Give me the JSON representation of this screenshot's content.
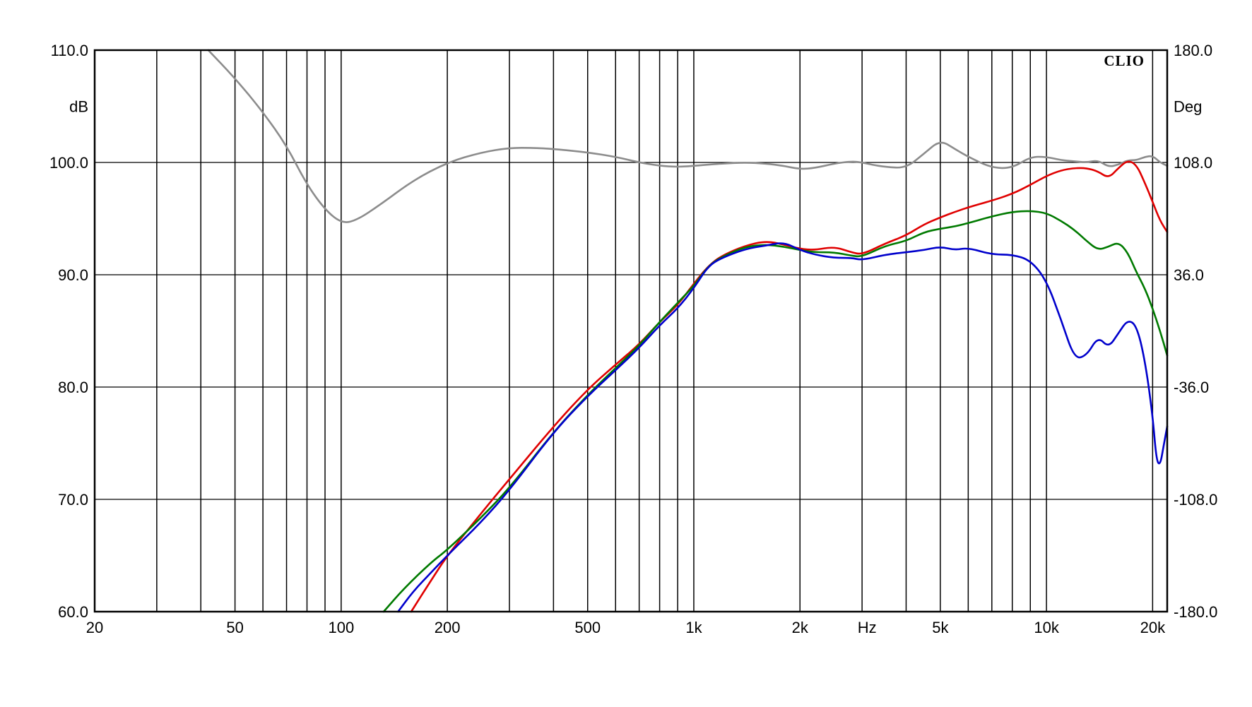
{
  "chart_data": {
    "type": "line",
    "title": "",
    "brand": "CLIO",
    "xlabel": "Hz",
    "ylabel_left": "dB",
    "ylabel_right": "Deg",
    "x_scale": "log",
    "xlim": [
      20,
      22000
    ],
    "ylim_left": [
      60,
      110
    ],
    "ylim_right": [
      -180,
      180
    ],
    "grid": true,
    "legend": "none",
    "x_tick_labels": [
      {
        "label": "20",
        "value": 20
      },
      {
        "label": "50",
        "value": 50
      },
      {
        "label": "100",
        "value": 100
      },
      {
        "label": "200",
        "value": 200
      },
      {
        "label": "500",
        "value": 500
      },
      {
        "label": "1k",
        "value": 1000
      },
      {
        "label": "2k",
        "value": 2000
      },
      {
        "label": "Hz",
        "value": 3100
      },
      {
        "label": "5k",
        "value": 5000
      },
      {
        "label": "10k",
        "value": 10000
      },
      {
        "label": "20k",
        "value": 20000
      }
    ],
    "x_grid_lines": [
      30,
      40,
      50,
      60,
      70,
      80,
      90,
      100,
      200,
      300,
      400,
      500,
      600,
      700,
      800,
      900,
      1000,
      2000,
      3000,
      4000,
      5000,
      6000,
      7000,
      8000,
      9000,
      10000,
      20000
    ],
    "y_ticks_left": [
      "110.0",
      "100.0",
      "90.0",
      "80.0",
      "70.0",
      "60.0"
    ],
    "y_tick_values_left": [
      110,
      100,
      90,
      80,
      70,
      60
    ],
    "y_ticks_right": [
      "180.0",
      "108.0",
      "36.0",
      "-36.0",
      "-108.0",
      "-180.0"
    ],
    "series": [
      {
        "color": "#8c8c8c",
        "x": [
          42,
          50,
          60,
          70,
          80,
          90,
          100,
          110,
          130,
          160,
          200,
          250,
          300,
          350,
          400,
          500,
          600,
          700,
          800,
          900,
          1000,
          1200,
          1400,
          1600,
          1800,
          2000,
          2200,
          2500,
          2800,
          3000,
          3200,
          3500,
          4000,
          4500,
          5000,
          5500,
          6000,
          7000,
          8000,
          9000,
          10000,
          11000,
          12000,
          13000,
          14000,
          15000,
          16000,
          17000,
          18000,
          19000,
          20000,
          21000,
          22000
        ],
        "values": [
          110,
          107.5,
          104.5,
          101.5,
          98.0,
          95.8,
          94.6,
          94.8,
          96.3,
          98.4,
          100.0,
          100.9,
          101.3,
          101.3,
          101.2,
          100.9,
          100.5,
          100.0,
          99.7,
          99.6,
          99.7,
          99.9,
          100.0,
          99.9,
          99.7,
          99.4,
          99.5,
          99.9,
          100.1,
          100.0,
          99.8,
          99.6,
          99.5,
          100.8,
          102.0,
          101.2,
          100.5,
          99.5,
          99.5,
          100.5,
          100.5,
          100.2,
          100.1,
          100.0,
          100.2,
          99.6,
          99.8,
          100.2,
          100.2,
          100.5,
          100.6,
          100.0,
          99.7
        ]
      },
      {
        "color": "#e00000",
        "x": [
          158,
          180,
          200,
          250,
          300,
          400,
          500,
          600,
          700,
          800,
          900,
          1000,
          1100,
          1200,
          1400,
          1600,
          1800,
          2000,
          2200,
          2500,
          2800,
          3000,
          3500,
          4000,
          4500,
          5000,
          5500,
          6000,
          7000,
          8000,
          9000,
          10000,
          11000,
          12000,
          13000,
          14000,
          15000,
          16000,
          17000,
          18000,
          19000,
          20000,
          21000,
          22000
        ],
        "values": [
          60,
          62.8,
          65.0,
          68.8,
          71.8,
          76.5,
          79.8,
          82.0,
          83.8,
          85.8,
          87.3,
          89.2,
          90.8,
          91.7,
          92.6,
          93.0,
          92.7,
          92.3,
          92.2,
          92.5,
          92.0,
          91.8,
          92.8,
          93.5,
          94.5,
          95.1,
          95.6,
          96.0,
          96.6,
          97.2,
          98.0,
          98.8,
          99.3,
          99.5,
          99.5,
          99.2,
          98.6,
          99.5,
          100.2,
          99.8,
          98.2,
          96.5,
          94.8,
          93.8
        ]
      },
      {
        "color": "#007a00",
        "x": [
          132,
          150,
          180,
          200,
          250,
          300,
          400,
          500,
          600,
          700,
          800,
          900,
          1000,
          1100,
          1200,
          1400,
          1600,
          1800,
          2000,
          2200,
          2500,
          2800,
          3000,
          3500,
          4000,
          4500,
          5000,
          5500,
          6000,
          7000,
          8000,
          9000,
          10000,
          11000,
          12000,
          13000,
          14000,
          15000,
          16000,
          17000,
          18000,
          19000,
          20000,
          21000,
          22000
        ],
        "values": [
          60,
          62.0,
          64.4,
          65.5,
          68.4,
          71.0,
          76.0,
          79.3,
          81.7,
          83.7,
          85.8,
          87.5,
          89.0,
          90.8,
          91.6,
          92.5,
          92.7,
          92.5,
          92.2,
          92.0,
          92.0,
          91.7,
          91.6,
          92.6,
          93.0,
          93.8,
          94.1,
          94.3,
          94.6,
          95.2,
          95.6,
          95.7,
          95.5,
          94.8,
          94.0,
          93.0,
          92.2,
          92.5,
          92.9,
          92.0,
          90.2,
          88.8,
          87.0,
          85.0,
          82.8
        ]
      },
      {
        "color": "#0000cc",
        "x": [
          145,
          160,
          180,
          200,
          250,
          300,
          400,
          500,
          600,
          700,
          800,
          900,
          1000,
          1100,
          1200,
          1400,
          1600,
          1800,
          2000,
          2200,
          2500,
          2800,
          3000,
          3500,
          4000,
          4500,
          5000,
          5500,
          6000,
          7000,
          8000,
          9000,
          10000,
          11000,
          12000,
          13000,
          14000,
          15000,
          16000,
          17000,
          18000,
          19000,
          20000,
          20500,
          21000,
          21500,
          22000
        ],
        "values": [
          60,
          61.8,
          63.5,
          65.0,
          68.0,
          70.8,
          76.0,
          79.2,
          81.5,
          83.5,
          85.5,
          87.0,
          88.8,
          90.8,
          91.5,
          92.3,
          92.6,
          92.9,
          92.2,
          91.8,
          91.5,
          91.5,
          91.3,
          91.8,
          92.0,
          92.2,
          92.5,
          92.2,
          92.4,
          91.8,
          91.8,
          91.3,
          89.5,
          86.0,
          82.5,
          82.8,
          84.5,
          83.5,
          84.8,
          86.0,
          85.5,
          82.5,
          77.5,
          73.5,
          73.0,
          74.8,
          76.5
        ]
      }
    ]
  }
}
